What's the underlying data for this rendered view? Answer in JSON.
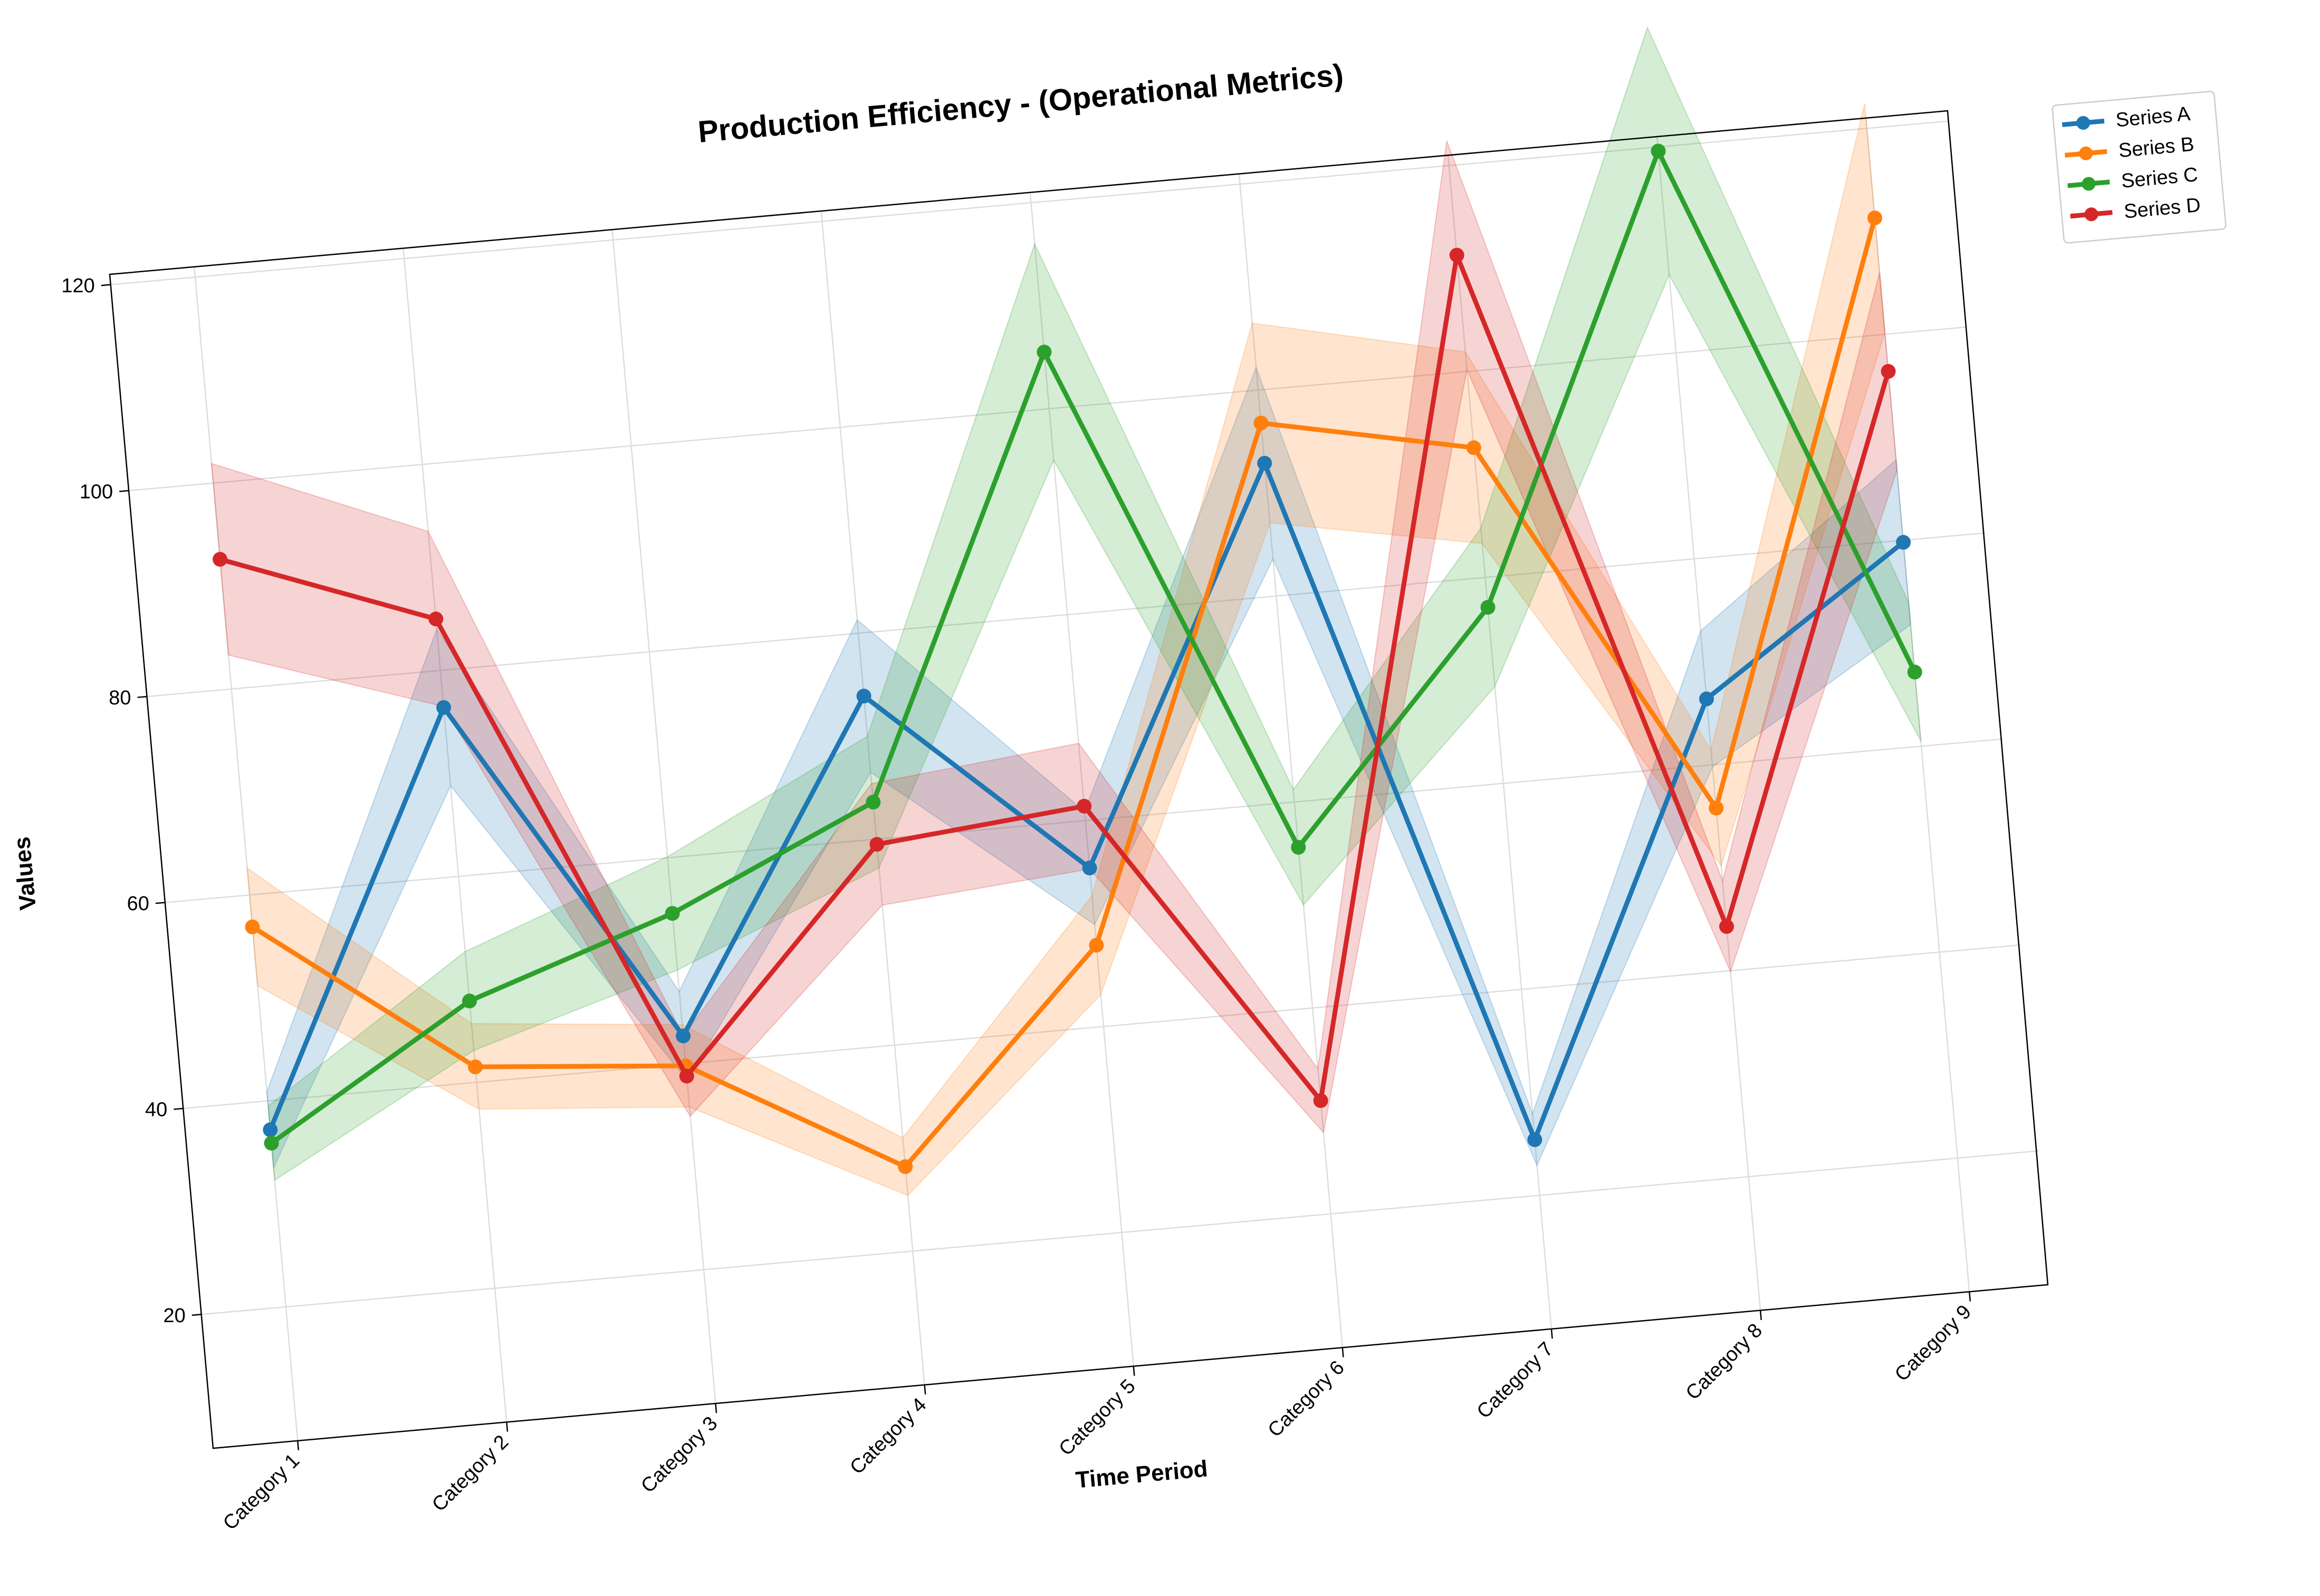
{
  "chart_data": {
    "type": "line",
    "title": "Production Efficiency - (Operational Metrics)",
    "xlabel": "Time Period",
    "ylabel": "Values",
    "categories": [
      "Category 1",
      "Category 2",
      "Category 3",
      "Category 4",
      "Category 5",
      "Category 6",
      "Category 7",
      "Category 8",
      "Category 9"
    ],
    "ylim": [
      7,
      121
    ],
    "yticks": [
      20,
      40,
      60,
      80,
      100,
      120
    ],
    "grid": true,
    "legend_position": "outside top-right",
    "series": [
      {
        "name": "Series A",
        "color": "#1f77b4",
        "values": [
          37.2,
          76.4,
          42.7,
          73.9,
          55.4,
          92.9,
          25.4,
          66.4,
          79.8
        ],
        "lower": [
          33.5,
          68.8,
          38.4,
          66.5,
          49.9,
          83.6,
          22.9,
          59.8,
          71.8
        ],
        "upper": [
          40.9,
          84.0,
          47.0,
          81.3,
          60.9,
          102.2,
          27.9,
          73.0,
          87.8
        ]
      },
      {
        "name": "Series B",
        "color": "#ff7f0e",
        "values": [
          56.9,
          41.5,
          39.8,
          28.2,
          47.9,
          96.8,
          92.6,
          55.8,
          111.3
        ],
        "lower": [
          51.2,
          37.4,
          35.8,
          25.4,
          43.1,
          87.1,
          83.3,
          50.2,
          100.2
        ],
        "upper": [
          62.6,
          45.7,
          43.8,
          31.0,
          52.7,
          106.5,
          101.9,
          61.4,
          122.4
        ]
      },
      {
        "name": "Series C",
        "color": "#2ca02c",
        "values": [
          35.9,
          47.9,
          54.6,
          63.6,
          105.5,
          55.6,
          77.1,
          119.6,
          67.2
        ],
        "lower": [
          32.3,
          43.1,
          49.1,
          57.2,
          95.0,
          50.0,
          69.4,
          107.6,
          60.5
        ],
        "upper": [
          39.5,
          52.7,
          60.1,
          70.0,
          116.0,
          61.2,
          84.8,
          131.6,
          73.9
        ]
      },
      {
        "name": "Series D",
        "color": "#d62728",
        "values": [
          92.6,
          85.0,
          38.8,
          59.5,
          61.4,
          31.0,
          111.3,
          44.3,
          96.4
        ],
        "lower": [
          83.3,
          76.5,
          34.9,
          53.6,
          55.3,
          27.9,
          100.2,
          39.9,
          86.8
        ],
        "upper": [
          101.9,
          93.5,
          42.7,
          65.4,
          67.5,
          34.1,
          122.4,
          48.7,
          106.0
        ]
      }
    ]
  }
}
